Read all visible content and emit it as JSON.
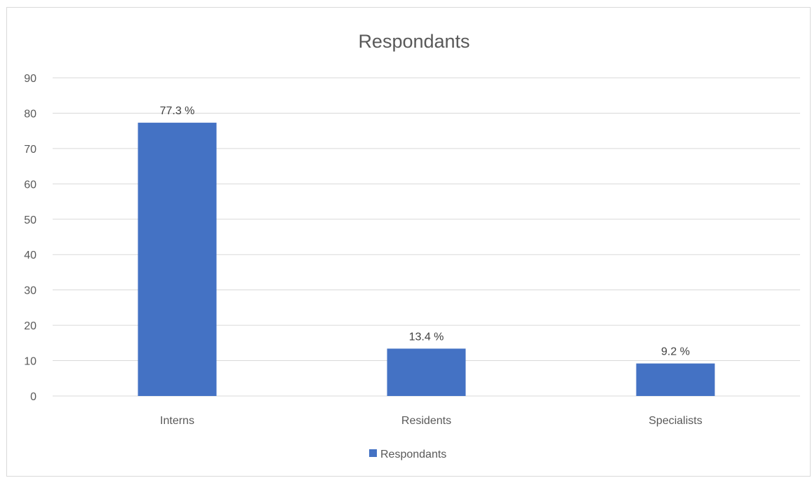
{
  "chart_data": {
    "type": "bar",
    "title": "Respondants",
    "xlabel": "",
    "ylabel": "",
    "categories": [
      "Interns",
      "Residents",
      "Specialists"
    ],
    "series": [
      {
        "name": "Respondants",
        "values": [
          77.3,
          13.4,
          9.2
        ],
        "labels": [
          "77.3 %",
          "13.4 %",
          "9.2 %"
        ]
      }
    ],
    "ylim": [
      0,
      90
    ],
    "yticks": [
      0,
      10,
      20,
      30,
      40,
      50,
      60,
      70,
      80,
      90
    ],
    "grid": true,
    "legend_position": "bottom",
    "bar_color": "#4472C4",
    "grid_color": "#d9d9d9"
  }
}
